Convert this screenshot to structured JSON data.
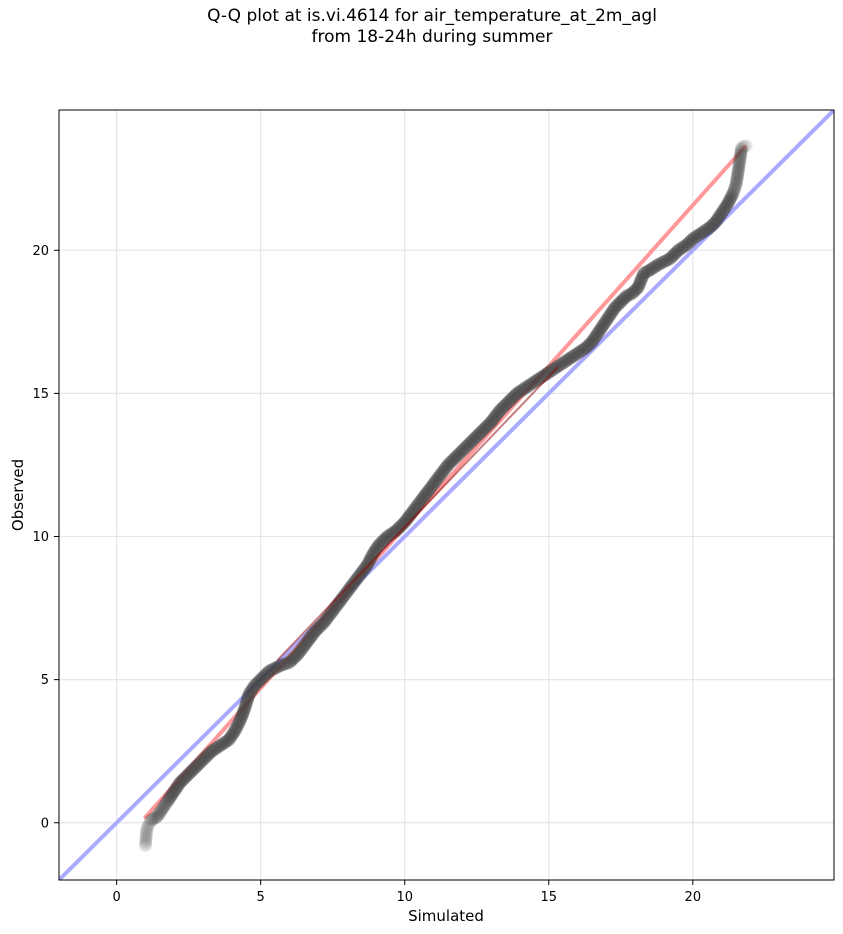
{
  "chart_data": {
    "type": "scatter",
    "title": "Q-Q plot at is.vi.4614 for air_temperature_at_2m_agl",
    "subtitle": "from 18-24h during summer",
    "xlabel": "Simulated",
    "ylabel": "Observed",
    "xlim": [
      -2.0,
      24.9
    ],
    "ylim": [
      -2.0,
      24.9
    ],
    "xticks": [
      0,
      5,
      10,
      15,
      20
    ],
    "yticks": [
      0,
      5,
      10,
      15,
      20
    ],
    "grid": true,
    "colors": {
      "points": "#404040",
      "reference_line": "#aaaaff",
      "fit_line": "#ff9999",
      "fit_core": "#8b0000"
    },
    "reference_line": {
      "x": [
        -2.0,
        24.9
      ],
      "y": [
        -2.0,
        24.9
      ]
    },
    "fit_line": {
      "x": [
        1.0,
        21.8
      ],
      "y": [
        0.2,
        23.6
      ]
    },
    "series": [
      {
        "quantiles": [
          [
            1.0,
            -0.8
          ],
          [
            1.05,
            -0.2
          ],
          [
            1.2,
            0.1
          ],
          [
            1.4,
            0.2
          ],
          [
            1.6,
            0.5
          ],
          [
            1.8,
            0.8
          ],
          [
            2.0,
            1.1
          ],
          [
            2.2,
            1.4
          ],
          [
            2.5,
            1.7
          ],
          [
            2.8,
            2.0
          ],
          [
            3.0,
            2.2
          ],
          [
            3.3,
            2.5
          ],
          [
            3.6,
            2.7
          ],
          [
            3.9,
            2.9
          ],
          [
            4.1,
            3.2
          ],
          [
            4.3,
            3.6
          ],
          [
            4.45,
            4.0
          ],
          [
            4.6,
            4.5
          ],
          [
            4.8,
            4.8
          ],
          [
            5.0,
            5.0
          ],
          [
            5.3,
            5.3
          ],
          [
            5.7,
            5.5
          ],
          [
            6.0,
            5.6
          ],
          [
            6.3,
            5.9
          ],
          [
            6.6,
            6.3
          ],
          [
            6.9,
            6.7
          ],
          [
            7.2,
            7.0
          ],
          [
            7.5,
            7.4
          ],
          [
            7.8,
            7.8
          ],
          [
            8.1,
            8.2
          ],
          [
            8.4,
            8.6
          ],
          [
            8.7,
            9.0
          ],
          [
            8.9,
            9.4
          ],
          [
            9.1,
            9.7
          ],
          [
            9.4,
            10.0
          ],
          [
            9.7,
            10.2
          ],
          [
            10.0,
            10.5
          ],
          [
            10.3,
            10.9
          ],
          [
            10.6,
            11.3
          ],
          [
            10.9,
            11.7
          ],
          [
            11.2,
            12.1
          ],
          [
            11.5,
            12.5
          ],
          [
            11.8,
            12.8
          ],
          [
            12.1,
            13.1
          ],
          [
            12.4,
            13.4
          ],
          [
            12.7,
            13.7
          ],
          [
            13.0,
            14.0
          ],
          [
            13.3,
            14.4
          ],
          [
            13.6,
            14.7
          ],
          [
            13.9,
            15.0
          ],
          [
            14.2,
            15.2
          ],
          [
            14.5,
            15.4
          ],
          [
            14.8,
            15.6
          ],
          [
            15.1,
            15.8
          ],
          [
            15.4,
            16.0
          ],
          [
            15.7,
            16.2
          ],
          [
            16.0,
            16.4
          ],
          [
            16.3,
            16.6
          ],
          [
            16.5,
            16.8
          ],
          [
            16.7,
            17.1
          ],
          [
            16.9,
            17.4
          ],
          [
            17.1,
            17.7
          ],
          [
            17.3,
            18.0
          ],
          [
            17.5,
            18.2
          ],
          [
            17.7,
            18.4
          ],
          [
            17.9,
            18.5
          ],
          [
            18.1,
            18.7
          ],
          [
            18.3,
            19.2
          ],
          [
            18.5,
            19.3
          ],
          [
            18.8,
            19.5
          ],
          [
            19.2,
            19.7
          ],
          [
            19.5,
            20.0
          ],
          [
            19.8,
            20.2
          ],
          [
            20.0,
            20.4
          ],
          [
            20.3,
            20.6
          ],
          [
            20.6,
            20.8
          ],
          [
            20.8,
            21.0
          ],
          [
            21.0,
            21.3
          ],
          [
            21.2,
            21.6
          ],
          [
            21.4,
            22.0
          ],
          [
            21.5,
            22.3
          ],
          [
            21.55,
            22.6
          ],
          [
            21.7,
            23.6
          ],
          [
            21.85,
            23.65
          ]
        ]
      }
    ]
  }
}
